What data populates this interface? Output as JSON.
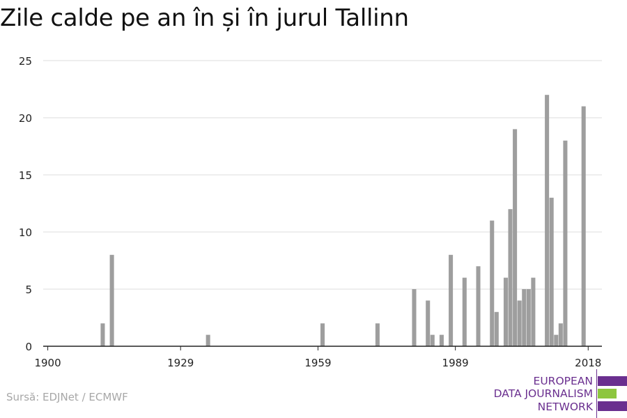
{
  "title": "Zile calde pe an în și în jurul Tallinn",
  "source": "Sursă: EDJNet / ECMWF",
  "logo": {
    "line1": "EUROPEAN",
    "line2": "DATA JOURNALISM",
    "line3": "NETWORK",
    "colors": {
      "purple": "#6a2f8f",
      "green": "#8dc63f"
    }
  },
  "colors": {
    "bar": "#9e9e9e",
    "grid": "#dedede",
    "axis": "#222222"
  },
  "chart_data": {
    "type": "bar",
    "title": "Zile calde pe an în și în jurul Tallinn",
    "xlabel": "",
    "ylabel": "",
    "ylim": [
      0,
      25
    ],
    "xlim": [
      1899,
      2021
    ],
    "x_ticks": [
      1900,
      1929,
      1959,
      1989,
      2018
    ],
    "y_ticks": [
      0,
      5,
      10,
      15,
      20,
      25
    ],
    "grid": true,
    "legend": "none",
    "x": [
      1912,
      1914,
      1935,
      1960,
      1972,
      1980,
      1983,
      1984,
      1986,
      1988,
      1991,
      1994,
      1997,
      1998,
      2000,
      2001,
      2002,
      2003,
      2004,
      2005,
      2006,
      2009,
      2010,
      2011,
      2012,
      2013,
      2017
    ],
    "values": [
      2,
      8,
      1,
      2,
      2,
      5,
      4,
      1,
      1,
      8,
      6,
      7,
      11,
      3,
      6,
      12,
      19,
      4,
      5,
      5,
      6,
      22,
      13,
      1,
      2,
      18,
      21
    ]
  }
}
